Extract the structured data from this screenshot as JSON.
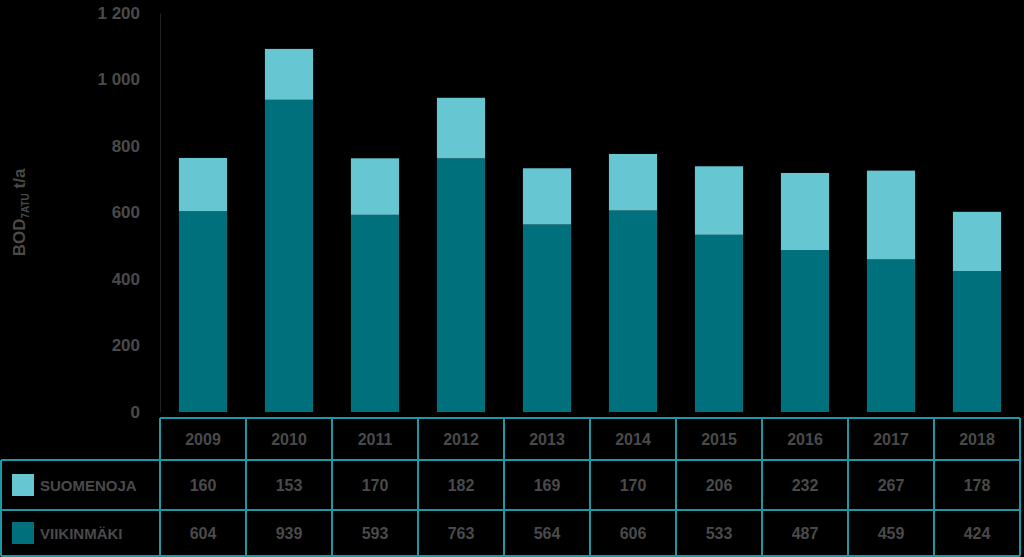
{
  "chart_data": {
    "type": "bar",
    "stacked": true,
    "grid": false,
    "y_label": "BOD7ATU t/a",
    "categories": [
      "2009",
      "2010",
      "2011",
      "2012",
      "2013",
      "2014",
      "2015",
      "2016",
      "2017",
      "2018"
    ],
    "ylim": [
      0,
      1200
    ],
    "yticks": [
      0,
      200,
      400,
      600,
      800,
      {
        "value": 1000,
        "label": "1 000"
      },
      {
        "value": 1200,
        "label": "1 200"
      }
    ],
    "series": [
      {
        "name": "SUOMENOJA",
        "color": "#66c6d1",
        "values": [
          160,
          153,
          170,
          182,
          169,
          170,
          206,
          232,
          267,
          178
        ]
      },
      {
        "name": "VIIKINMÄKI",
        "color": "#00717c",
        "values": [
          604,
          939,
          593,
          763,
          564,
          606,
          533,
          487,
          459,
          424
        ]
      }
    ]
  }
}
